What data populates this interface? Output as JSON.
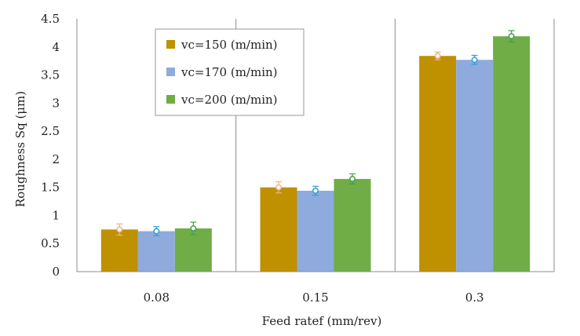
{
  "chart_data": {
    "type": "bar",
    "title": "",
    "xlabel": "Feed ratef (mm/rev)",
    "ylabel": "Roughness Sq (μm)",
    "categories": [
      "0.08",
      "0.15",
      "0.3"
    ],
    "ylim": [
      0,
      4.5
    ],
    "yticks": [
      "0",
      "0.5",
      "1",
      "1.5",
      "2",
      "2.5",
      "3",
      "3.5",
      "4",
      "4.5"
    ],
    "grid": "vertical category separators",
    "legend_position": "top-left inside",
    "series": [
      {
        "name": "vc=150 (m/min)",
        "color": "#bf9000",
        "marker_color": "#f4b183",
        "values": [
          0.75,
          1.5,
          3.84
        ],
        "errors": [
          0.1,
          0.1,
          0.07
        ]
      },
      {
        "name": "vc=170 (m/min)",
        "color": "#8faadc",
        "marker_color": "#2e9fd8",
        "values": [
          0.72,
          1.44,
          3.77
        ],
        "errors": [
          0.08,
          0.08,
          0.08
        ]
      },
      {
        "name": "vc=200 (m/min)",
        "color": "#70ad47",
        "marker_color": "#43a047",
        "values": [
          0.77,
          1.65,
          4.19
        ],
        "errors": [
          0.11,
          0.09,
          0.1
        ]
      }
    ]
  }
}
